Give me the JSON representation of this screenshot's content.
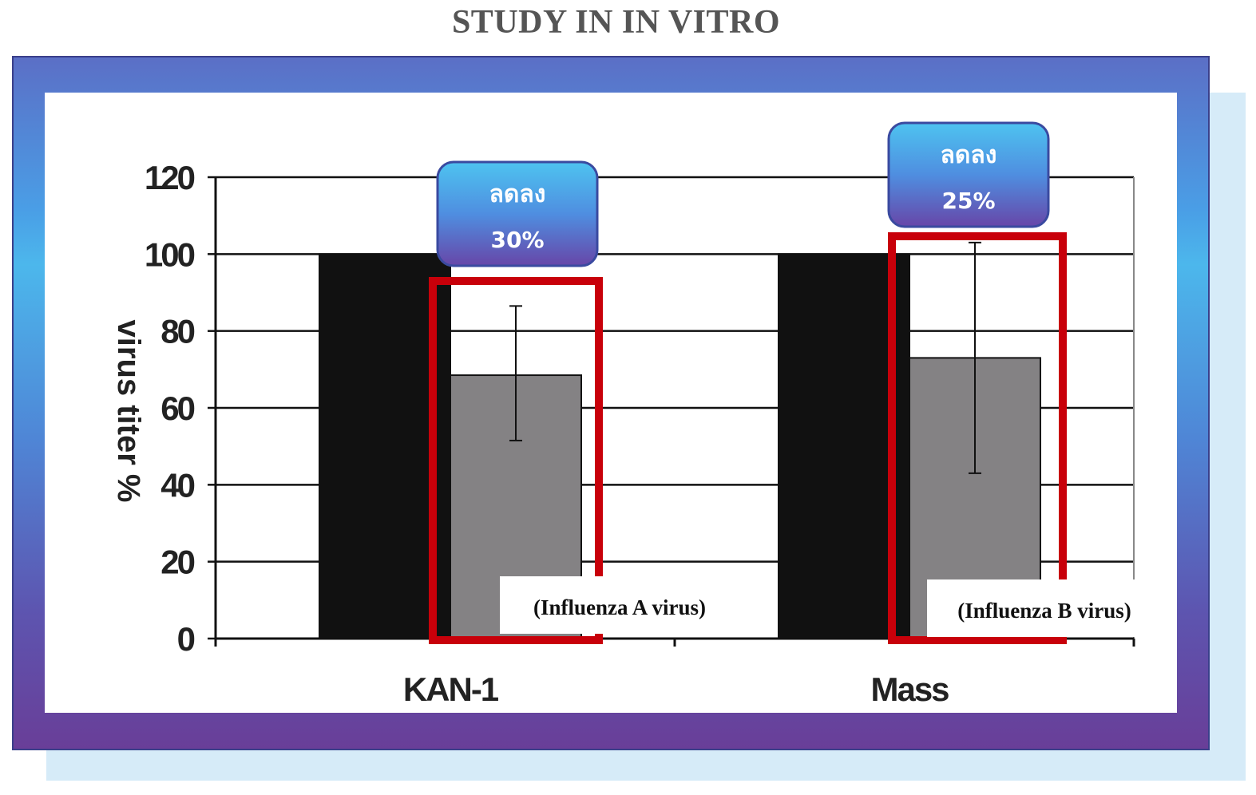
{
  "page": {
    "title": "STUDY IN IN VITRO"
  },
  "chart_data": {
    "type": "bar",
    "title": "",
    "xlabel": "",
    "ylabel": "virus titer %",
    "ylim": [
      0,
      120
    ],
    "yticks": [
      0,
      20,
      40,
      60,
      80,
      100,
      120
    ],
    "grid": true,
    "categories": [
      "KAN-1",
      "Mass"
    ],
    "series": [
      {
        "color": "#111111",
        "values": [
          100,
          100
        ]
      },
      {
        "color": "#848284",
        "values": [
          68.5,
          73
        ],
        "error_low": [
          51.5,
          43
        ],
        "error_high": [
          86.5,
          103
        ]
      }
    ],
    "annotations": [
      {
        "line1": "ลดลง",
        "line2": "30%",
        "caption": "(Influenza A virus)"
      },
      {
        "line1": "ลดลง",
        "line2": "25%",
        "caption": "(Influenza B virus)"
      }
    ]
  }
}
